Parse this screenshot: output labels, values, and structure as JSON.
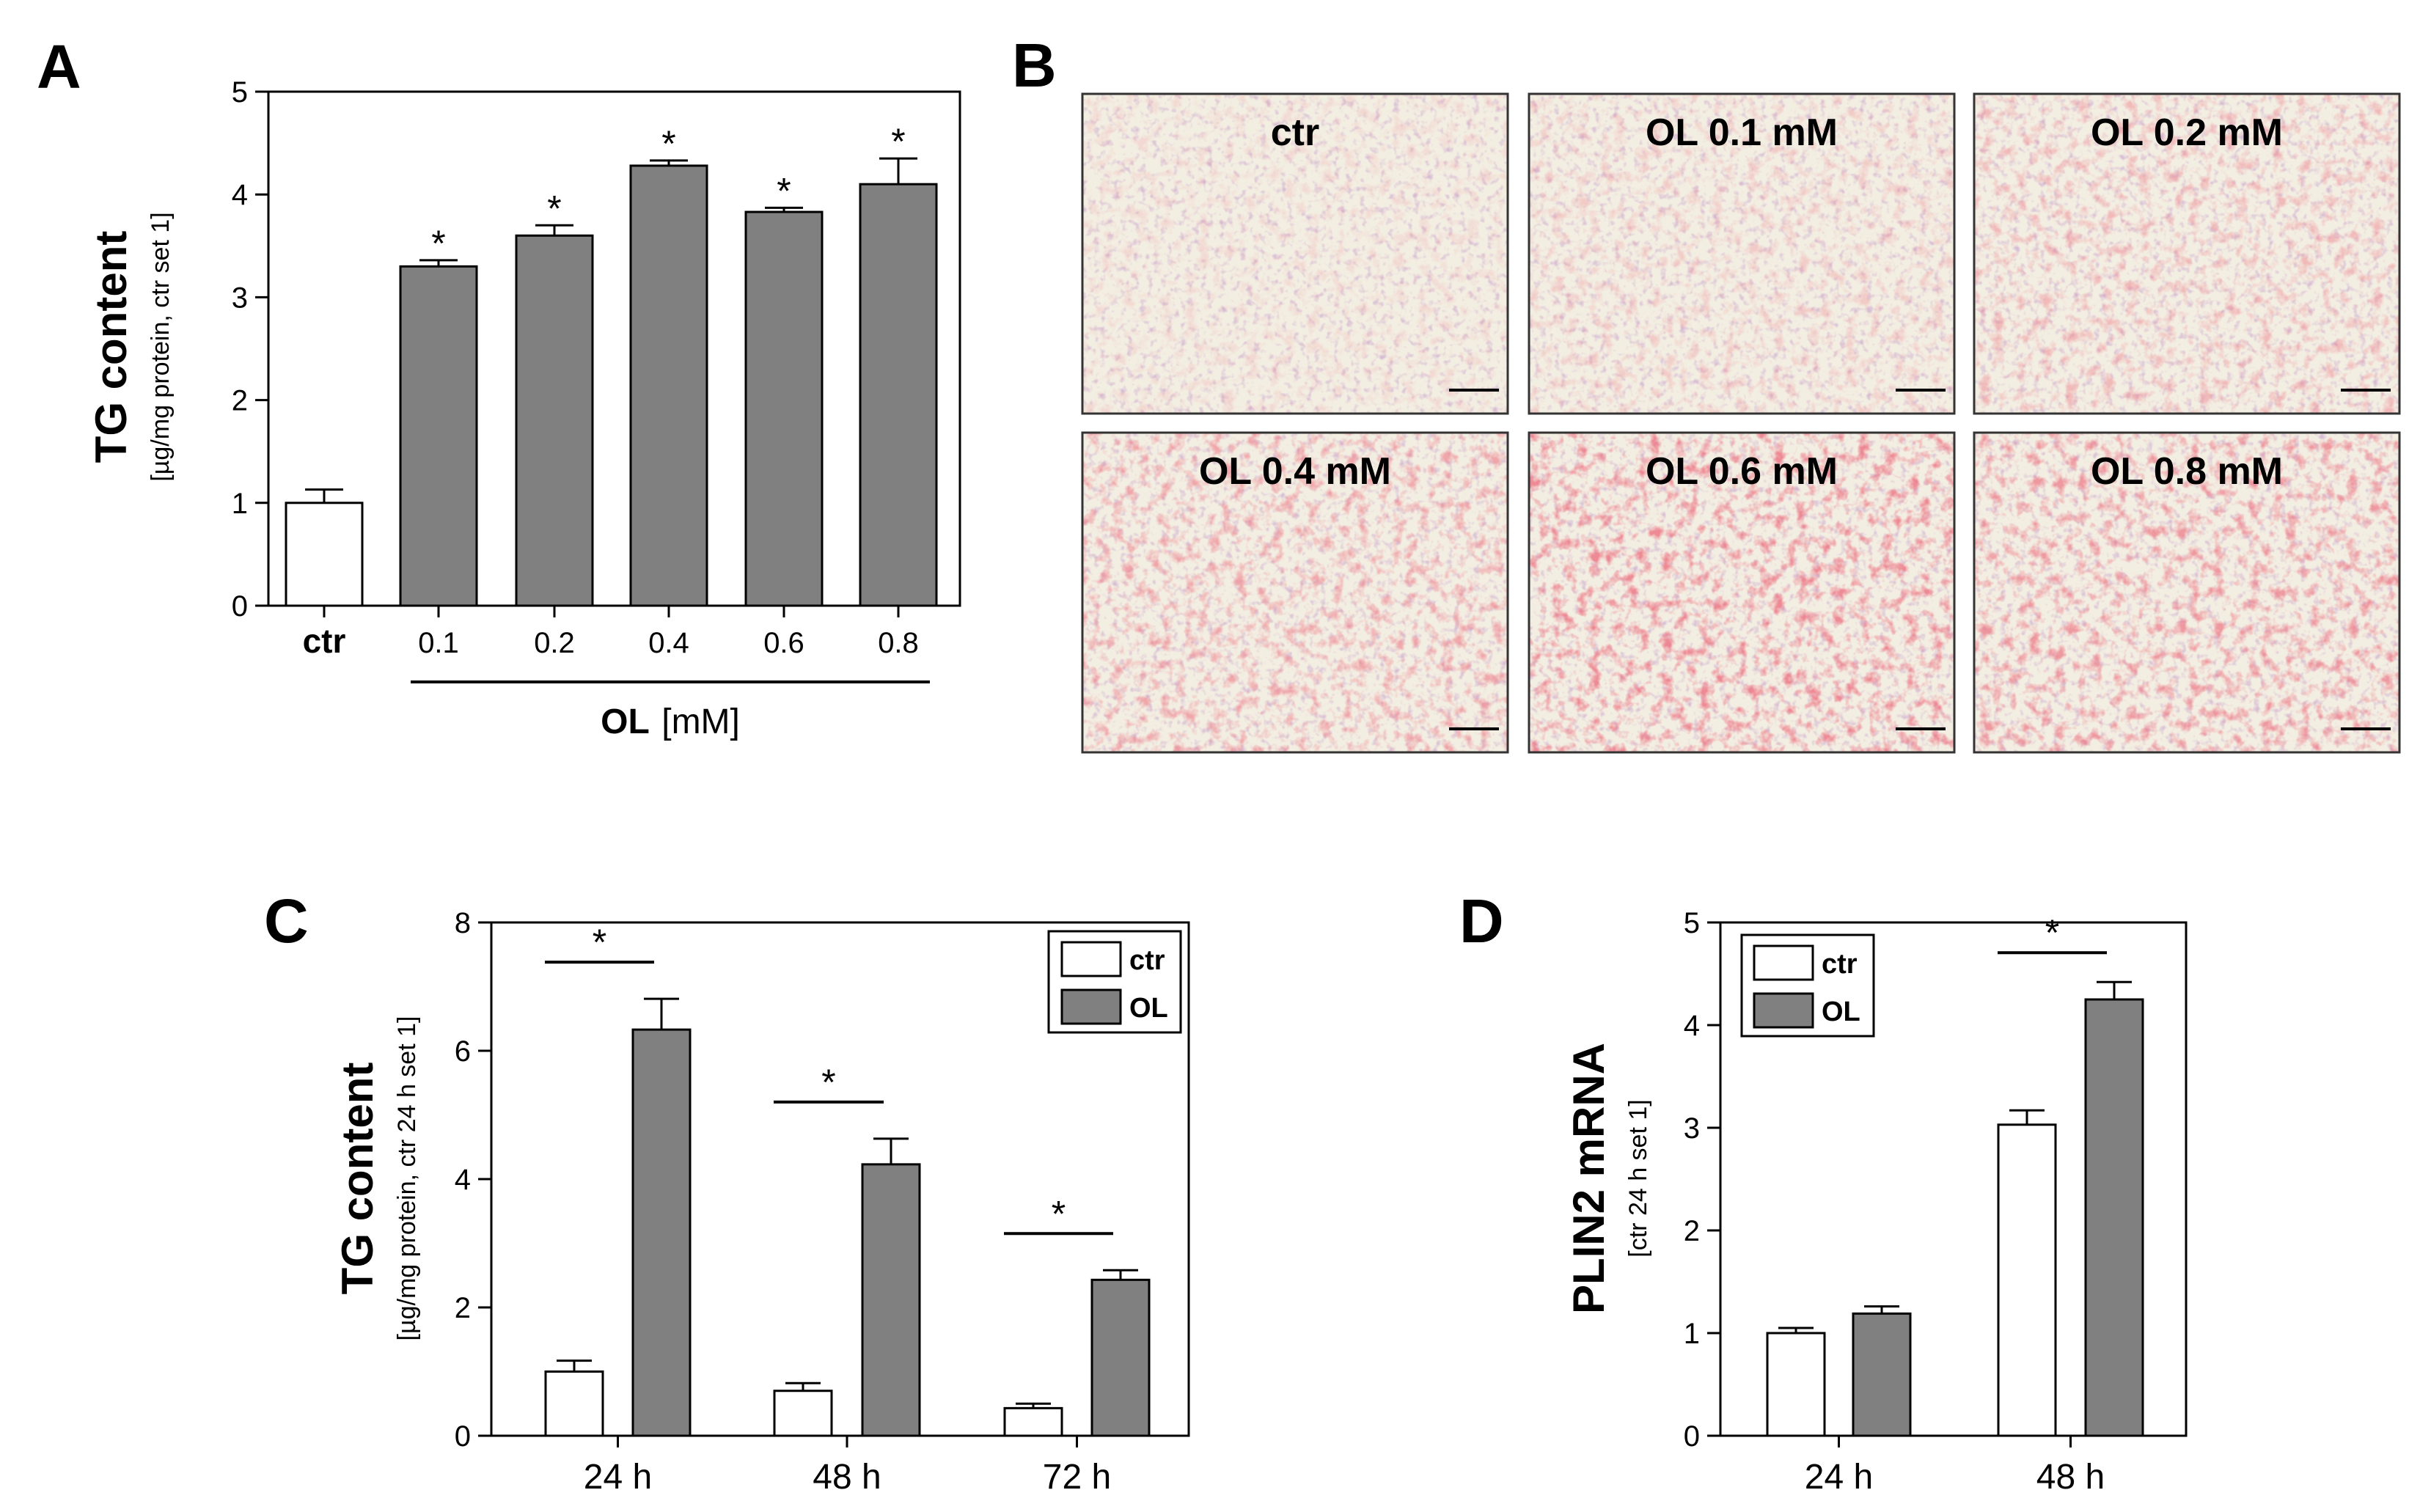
{
  "panels": {
    "A": "A",
    "B": "B",
    "C": "C",
    "D": "D"
  },
  "colors": {
    "ctr": "#ffffff",
    "ol": "#808080"
  },
  "micrographs": {
    "labels": [
      "ctr",
      "OL 0.1 mM",
      "OL 0.2 mM",
      "OL 0.4 mM",
      "OL 0.6 mM",
      "OL 0.8 mM"
    ],
    "stain_intensity": [
      0.05,
      0.18,
      0.35,
      0.55,
      0.85,
      0.7
    ]
  },
  "chart_data": [
    {
      "id": "A",
      "type": "bar",
      "categories": [
        "ctr",
        "0.1",
        "0.2",
        "0.4",
        "0.6",
        "0.8"
      ],
      "values": [
        1.0,
        3.3,
        3.6,
        4.28,
        3.83,
        4.1
      ],
      "errors": [
        0.13,
        0.06,
        0.1,
        0.05,
        0.04,
        0.25
      ],
      "significant": [
        false,
        true,
        true,
        true,
        true,
        true
      ],
      "star": "*",
      "ylabel": "TG content",
      "ylabel_sub": "[µg/mg protein, ctr set 1]",
      "xlabel_bold": "OL",
      "xlabel_unit": "[mM]",
      "ylim": [
        0,
        5
      ],
      "yticks": [
        "0",
        "1",
        "2",
        "3",
        "4",
        "5"
      ]
    },
    {
      "id": "C",
      "type": "bar",
      "categories": [
        "24 h",
        "48 h",
        "72 h"
      ],
      "series": [
        {
          "name": "ctr",
          "values": [
            1.0,
            0.7,
            0.43
          ],
          "errors": [
            0.17,
            0.12,
            0.07
          ]
        },
        {
          "name": "OL",
          "values": [
            6.33,
            4.23,
            2.43
          ],
          "errors": [
            0.48,
            0.4,
            0.15
          ]
        }
      ],
      "significance": [
        "*",
        "*",
        "*"
      ],
      "ylabel": "TG content",
      "ylabel_sub": "[µg/mg protein, ctr 24 h set 1]",
      "ylim": [
        0,
        8
      ],
      "yticks": [
        "0",
        "2",
        "4",
        "6",
        "8"
      ],
      "legend": "top-right"
    },
    {
      "id": "D",
      "type": "bar",
      "categories": [
        "24 h",
        "48 h"
      ],
      "series": [
        {
          "name": "ctr",
          "values": [
            1.0,
            3.03
          ],
          "errors": [
            0.05,
            0.14
          ]
        },
        {
          "name": "OL",
          "values": [
            1.19,
            4.25
          ],
          "errors": [
            0.07,
            0.17
          ]
        }
      ],
      "significance": [
        "",
        "*"
      ],
      "ylabel": "PLIN2 mRNA",
      "ylabel_sub": "[ctr 24 h set 1]",
      "ylim": [
        0,
        5
      ],
      "yticks": [
        "0",
        "1",
        "2",
        "3",
        "4",
        "5"
      ],
      "legend": "top-left"
    }
  ]
}
